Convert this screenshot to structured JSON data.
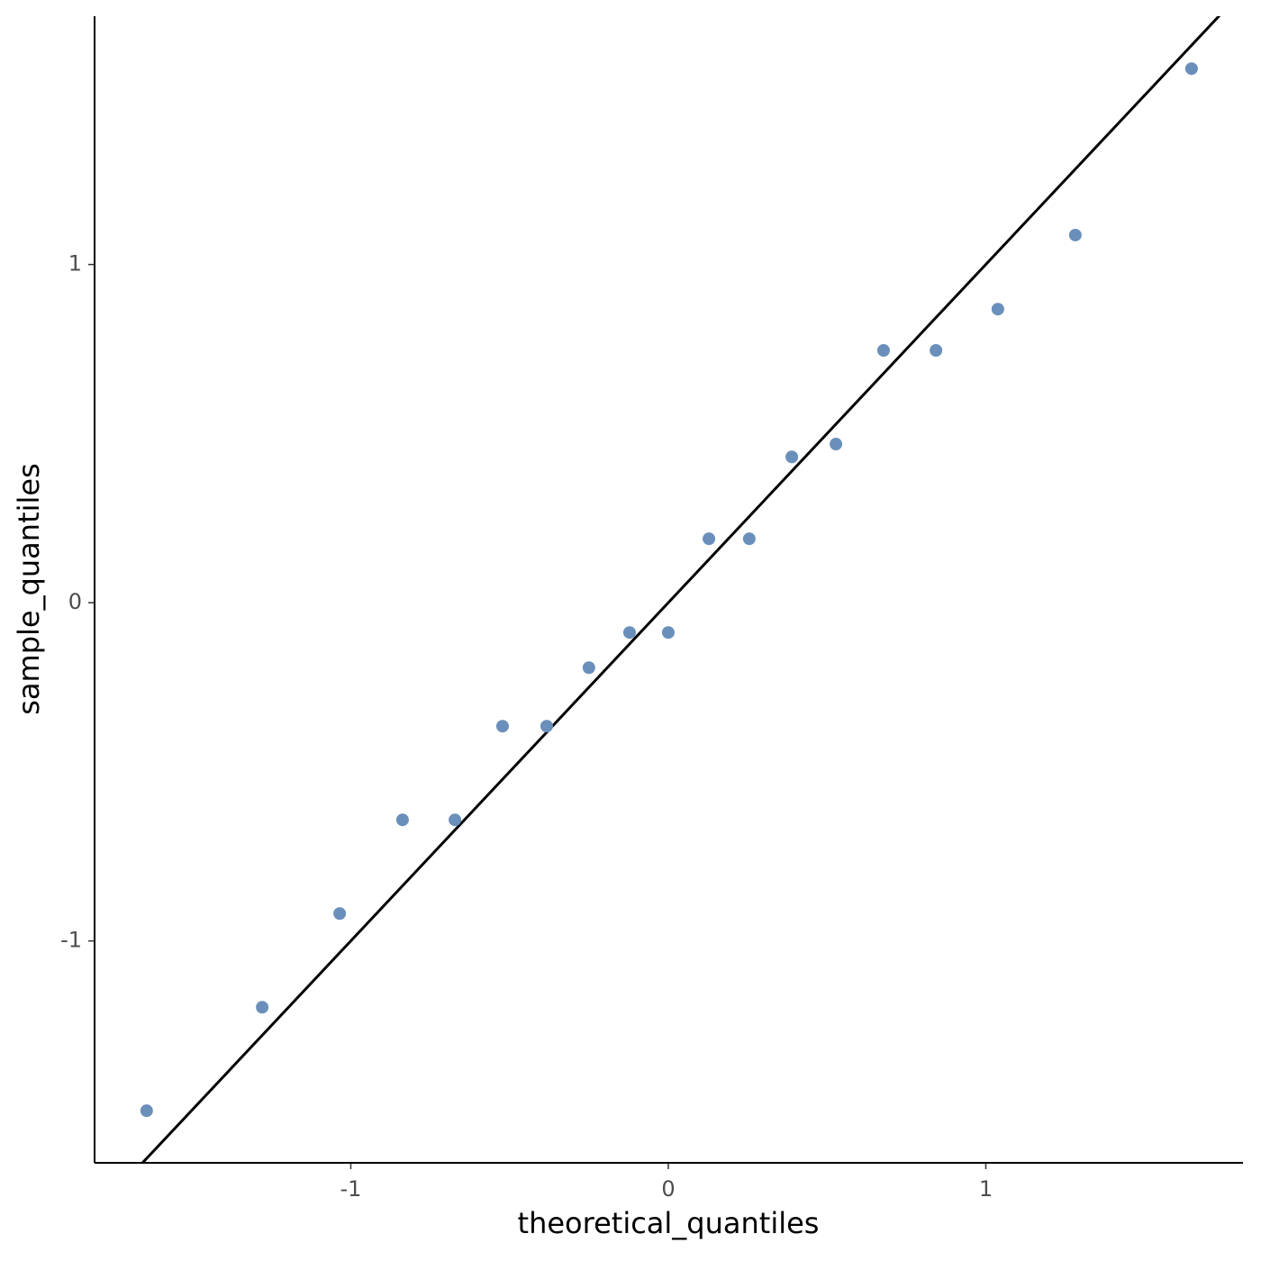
{
  "chart_data": {
    "type": "scatter",
    "x_label": "theoretical_quantiles",
    "y_label": "sample_quantiles",
    "series": [
      {
        "color": "#6a8fbb",
        "x": [
          -1.643,
          -1.279,
          -1.035,
          -0.837,
          -0.672,
          -0.522,
          -0.383,
          -0.25,
          -0.122,
          0,
          0.128,
          0.255,
          0.389,
          0.528,
          0.678,
          0.843,
          1.038,
          1.282,
          1.648
        ],
        "values": [
          -1.502,
          -1.196,
          -0.919,
          -0.642,
          -0.642,
          -0.365,
          -0.365,
          -0.192,
          -0.088,
          -0.088,
          0.189,
          0.189,
          0.431,
          0.469,
          0.746,
          0.746,
          0.868,
          1.087,
          1.579
        ]
      }
    ],
    "reference_line": {
      "slope": 1,
      "intercept": 0,
      "color": "#000000"
    },
    "xlim": [
      -1.807,
      1.81
    ],
    "xticks": [
      -1,
      0,
      1
    ],
    "ylim": [
      -1.656,
      1.734
    ],
    "yticks": [
      -1,
      0,
      1
    ],
    "grid": false
  }
}
